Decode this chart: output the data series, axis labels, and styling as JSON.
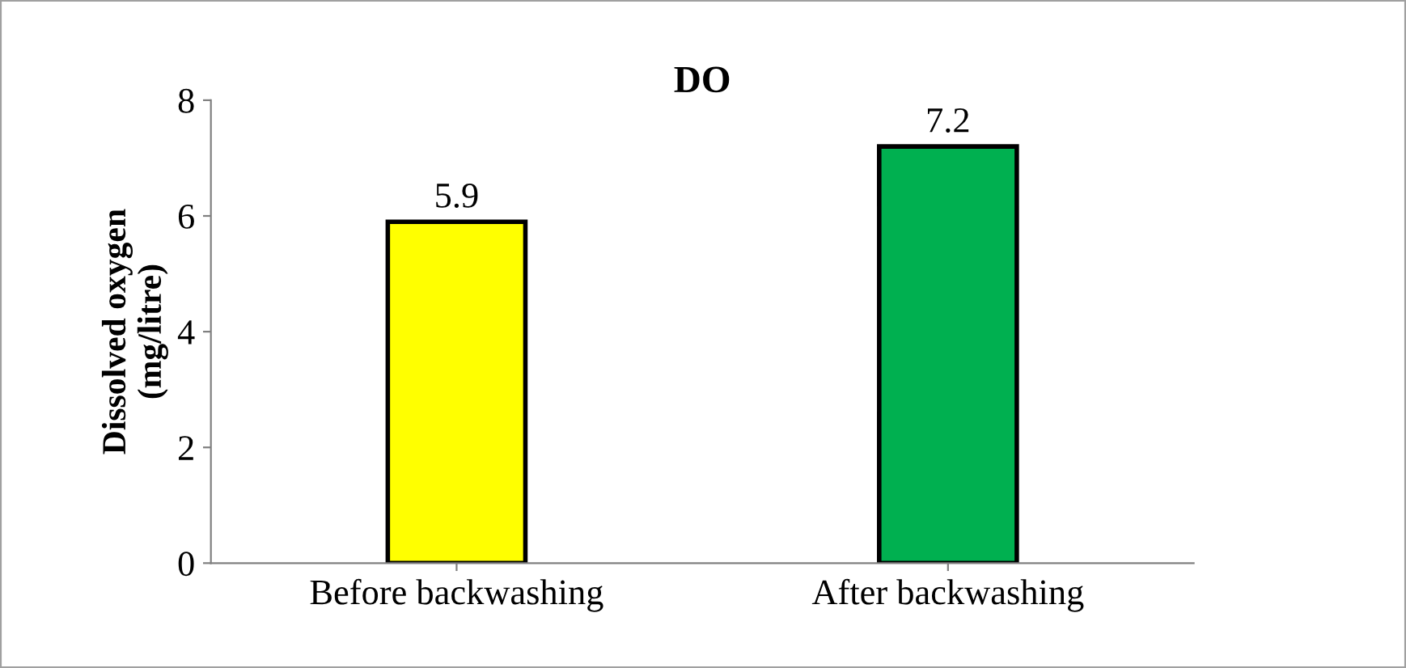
{
  "chart_data": {
    "type": "bar",
    "title": "DO",
    "ylabel": "Dissolved oxygen\n(mg/litre)",
    "categories": [
      "Before backwashing",
      "After backwashing"
    ],
    "values": [
      5.9,
      7.2
    ],
    "colors": [
      "#ffff00",
      "#00b050"
    ],
    "ylim": [
      0,
      8
    ],
    "yticks": [
      0,
      2,
      4,
      6,
      8
    ],
    "grid": false,
    "data_labels": true
  }
}
